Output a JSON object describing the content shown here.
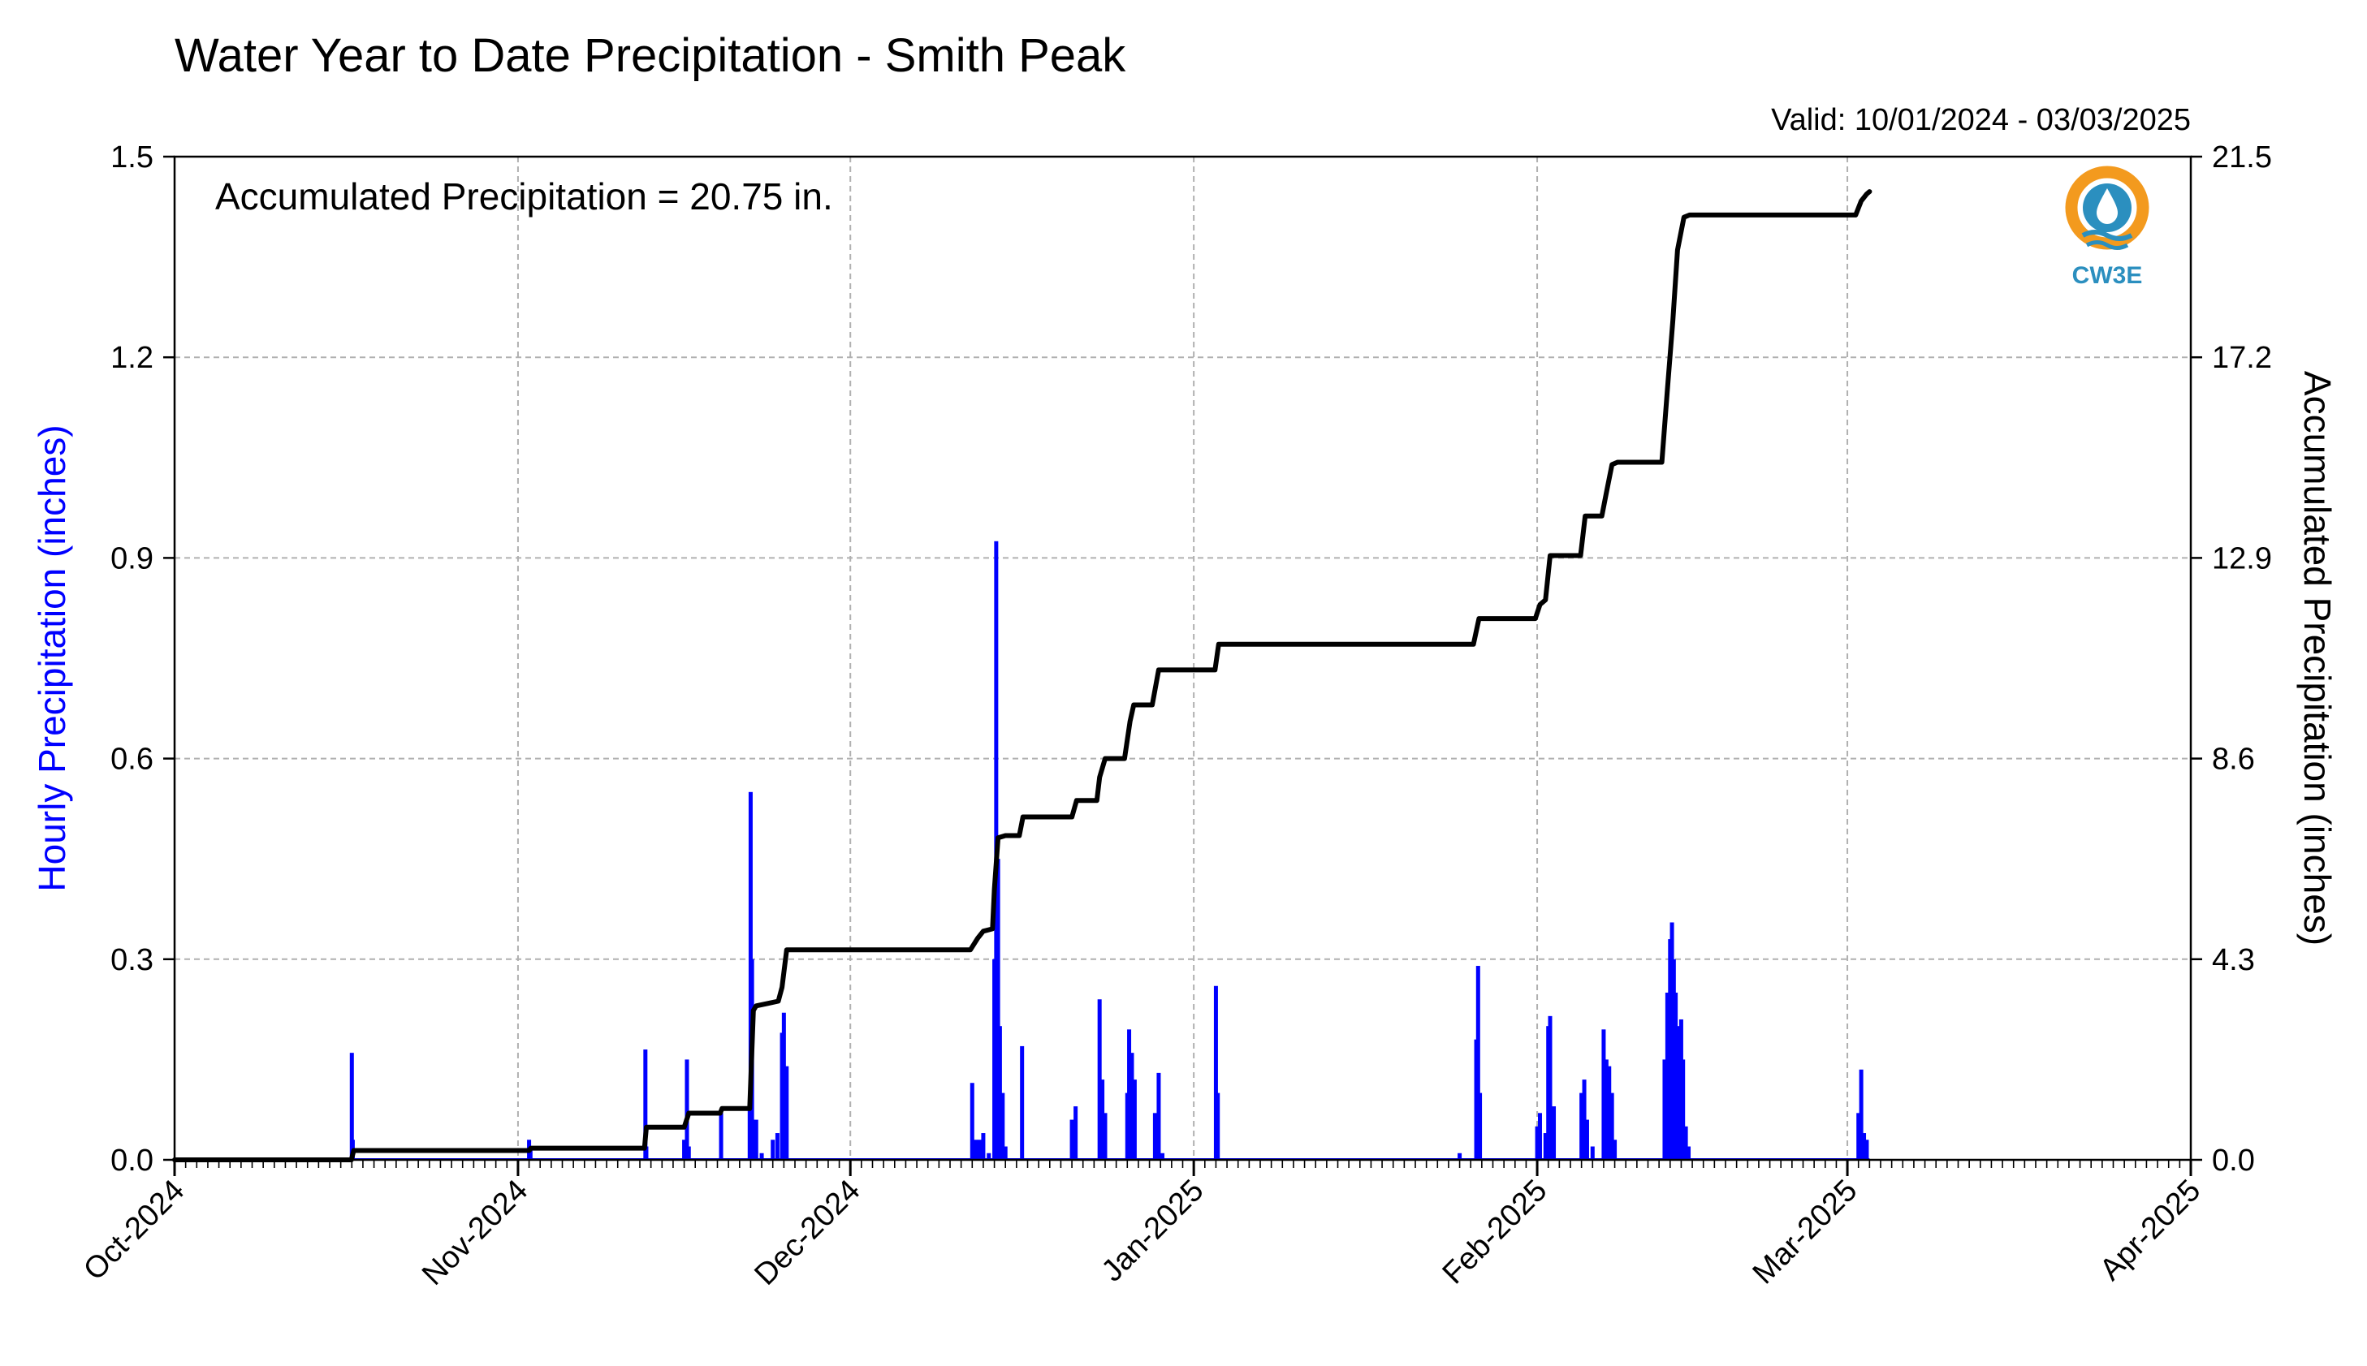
{
  "chart_data": {
    "type": "bar+line",
    "title": "Water Year to Date Precipitation - Smith Peak",
    "subtitle": "Valid: 10/01/2024 - 03/03/2025",
    "annotation": "Accumulated Precipitation = 20.75 in.",
    "logo_text": "CW3E",
    "ylabel_left": "Hourly Precipitation (inches)",
    "ylabel_right": "Accumulated Precipitation (inches)",
    "x_range": [
      "2024-10-01",
      "2025-04-01"
    ],
    "x_tick_labels": [
      "Oct-2024",
      "Nov-2024",
      "Dec-2024",
      "Jan-2025",
      "Feb-2025",
      "Mar-2025",
      "Apr-2025"
    ],
    "x_tick_dates": [
      "2024-10-01",
      "2024-11-01",
      "2024-12-01",
      "2025-01-01",
      "2025-02-01",
      "2025-03-01",
      "2025-04-01"
    ],
    "ylim_left": [
      0,
      1.5
    ],
    "yticks_left": [
      "0.0",
      "0.3",
      "0.6",
      "0.9",
      "1.2",
      "1.5"
    ],
    "ylim_right": [
      0,
      21.5
    ],
    "yticks_right": [
      "0.0",
      "4.3",
      "8.6",
      "12.9",
      "17.2",
      "21.5"
    ],
    "grid": true,
    "colors": {
      "hourly": "#0000ff",
      "accumulated": "#000000",
      "grid": "#b0b0b0"
    },
    "series": [
      {
        "name": "Hourly Precipitation",
        "kind": "bar",
        "points": [
          [
            "2024-10-17 00:00",
            0.16
          ],
          [
            "2024-10-17 02:00",
            0.03
          ],
          [
            "2024-11-02 00:00",
            0.03
          ],
          [
            "2024-11-02 03:00",
            0.02
          ],
          [
            "2024-11-12 12:00",
            0.165
          ],
          [
            "2024-11-12 14:00",
            0.02
          ],
          [
            "2024-11-16 00:00",
            0.03
          ],
          [
            "2024-11-16 06:00",
            0.15
          ],
          [
            "2024-11-16 10:00",
            0.02
          ],
          [
            "2024-11-19 08:00",
            0.07
          ],
          [
            "2024-11-21 22:00",
            0.08
          ],
          [
            "2024-11-22 00:00",
            0.55
          ],
          [
            "2024-11-22 03:00",
            0.3
          ],
          [
            "2024-11-22 06:00",
            0.06
          ],
          [
            "2024-11-22 12:00",
            0.06
          ],
          [
            "2024-11-23 00:00",
            0.01
          ],
          [
            "2024-11-24 00:00",
            0.03
          ],
          [
            "2024-11-24 10:00",
            0.04
          ],
          [
            "2024-11-24 20:00",
            0.19
          ],
          [
            "2024-11-25 00:00",
            0.22
          ],
          [
            "2024-11-25 06:00",
            0.14
          ],
          [
            "2024-12-12 00:00",
            0.115
          ],
          [
            "2024-12-12 08:00",
            0.03
          ],
          [
            "2024-12-12 16:00",
            0.03
          ],
          [
            "2024-12-13 00:00",
            0.04
          ],
          [
            "2024-12-13 12:00",
            0.01
          ],
          [
            "2024-12-14 00:00",
            0.3
          ],
          [
            "2024-12-14 04:00",
            0.925
          ],
          [
            "2024-12-14 08:00",
            0.45
          ],
          [
            "2024-12-14 12:00",
            0.2
          ],
          [
            "2024-12-14 18:00",
            0.1
          ],
          [
            "2024-12-15 00:00",
            0.02
          ],
          [
            "2024-12-16 12:00",
            0.17
          ],
          [
            "2024-12-21 00:00",
            0.06
          ],
          [
            "2024-12-21 08:00",
            0.08
          ],
          [
            "2024-12-23 12:00",
            0.24
          ],
          [
            "2024-12-23 18:00",
            0.12
          ],
          [
            "2024-12-24 00:00",
            0.07
          ],
          [
            "2024-12-26 00:00",
            0.1
          ],
          [
            "2024-12-26 04:00",
            0.195
          ],
          [
            "2024-12-26 10:00",
            0.16
          ],
          [
            "2024-12-26 16:00",
            0.12
          ],
          [
            "2024-12-28 12:00",
            0.07
          ],
          [
            "2024-12-28 20:00",
            0.13
          ],
          [
            "2024-12-29 04:00",
            0.01
          ],
          [
            "2025-01-03 00:00",
            0.26
          ],
          [
            "2025-01-03 04:00",
            0.1
          ],
          [
            "2025-01-25 00:00",
            0.01
          ],
          [
            "2025-01-26 12:00",
            0.18
          ],
          [
            "2025-01-26 16:00",
            0.29
          ],
          [
            "2025-01-26 20:00",
            0.1
          ],
          [
            "2025-02-01 00:00",
            0.05
          ],
          [
            "2025-02-01 06:00",
            0.07
          ],
          [
            "2025-02-01 18:00",
            0.04
          ],
          [
            "2025-02-02 00:00",
            0.2
          ],
          [
            "2025-02-02 04:00",
            0.215
          ],
          [
            "2025-02-02 12:00",
            0.08
          ],
          [
            "2025-02-05 00:00",
            0.1
          ],
          [
            "2025-02-05 06:00",
            0.12
          ],
          [
            "2025-02-05 12:00",
            0.06
          ],
          [
            "2025-02-06 00:00",
            0.02
          ],
          [
            "2025-02-07 00:00",
            0.195
          ],
          [
            "2025-02-07 06:00",
            0.15
          ],
          [
            "2025-02-07 12:00",
            0.14
          ],
          [
            "2025-02-07 18:00",
            0.1
          ],
          [
            "2025-02-08 00:00",
            0.03
          ],
          [
            "2025-02-12 12:00",
            0.15
          ],
          [
            "2025-02-12 18:00",
            0.25
          ],
          [
            "2025-02-13 00:00",
            0.33
          ],
          [
            "2025-02-13 04:00",
            0.355
          ],
          [
            "2025-02-13 08:00",
            0.3
          ],
          [
            "2025-02-13 12:00",
            0.25
          ],
          [
            "2025-02-13 18:00",
            0.2
          ],
          [
            "2025-02-14 00:00",
            0.21
          ],
          [
            "2025-02-14 04:00",
            0.15
          ],
          [
            "2025-02-14 10:00",
            0.05
          ],
          [
            "2025-02-14 16:00",
            0.02
          ],
          [
            "2025-03-02 00:00",
            0.07
          ],
          [
            "2025-03-02 06:00",
            0.135
          ],
          [
            "2025-03-02 12:00",
            0.04
          ],
          [
            "2025-03-02 18:00",
            0.03
          ]
        ]
      },
      {
        "name": "Accumulated Precipitation",
        "kind": "line",
        "points": [
          [
            "2024-10-01 00:00",
            0.0
          ],
          [
            "2024-10-16 23:00",
            0.0
          ],
          [
            "2024-10-17 04:00",
            0.2
          ],
          [
            "2024-11-02 00:00",
            0.2
          ],
          [
            "2024-11-02 04:00",
            0.25
          ],
          [
            "2024-11-12 10:00",
            0.25
          ],
          [
            "2024-11-12 14:00",
            0.7
          ],
          [
            "2024-11-16 00:00",
            0.7
          ],
          [
            "2024-11-16 10:00",
            1.0
          ],
          [
            "2024-11-19 06:00",
            1.0
          ],
          [
            "2024-11-19 10:00",
            1.1
          ],
          [
            "2024-11-21 22:00",
            1.1
          ],
          [
            "2024-11-22 06:00",
            3.2
          ],
          [
            "2024-11-22 12:00",
            3.3
          ],
          [
            "2024-11-23 12:00",
            3.35
          ],
          [
            "2024-11-24 12:00",
            3.4
          ],
          [
            "2024-11-24 20:00",
            3.7
          ],
          [
            "2024-11-25 06:00",
            4.5
          ],
          [
            "2024-12-11 20:00",
            4.5
          ],
          [
            "2024-12-12 12:00",
            4.75
          ],
          [
            "2024-12-13 00:00",
            4.9
          ],
          [
            "2024-12-13 20:00",
            4.95
          ],
          [
            "2024-12-14 00:00",
            5.8
          ],
          [
            "2024-12-14 08:00",
            6.9
          ],
          [
            "2024-12-15 00:00",
            6.95
          ],
          [
            "2024-12-16 06:00",
            6.95
          ],
          [
            "2024-12-16 14:00",
            7.35
          ],
          [
            "2024-12-21 00:00",
            7.35
          ],
          [
            "2024-12-21 10:00",
            7.7
          ],
          [
            "2024-12-23 06:00",
            7.7
          ],
          [
            "2024-12-23 12:00",
            8.2
          ],
          [
            "2024-12-24 00:00",
            8.6
          ],
          [
            "2024-12-25 18:00",
            8.6
          ],
          [
            "2024-12-26 06:00",
            9.4
          ],
          [
            "2024-12-26 14:00",
            9.75
          ],
          [
            "2024-12-28 06:00",
            9.75
          ],
          [
            "2024-12-28 20:00",
            10.5
          ],
          [
            "2025-01-02 22:00",
            10.5
          ],
          [
            "2025-01-03 06:00",
            11.05
          ],
          [
            "2025-01-26 06:00",
            11.05
          ],
          [
            "2025-01-26 18:00",
            11.6
          ],
          [
            "2025-01-31 20:00",
            11.6
          ],
          [
            "2025-02-01 06:00",
            11.9
          ],
          [
            "2025-02-01 18:00",
            12.0
          ],
          [
            "2025-02-02 04:00",
            12.95
          ],
          [
            "2025-02-04 22:00",
            12.95
          ],
          [
            "2025-02-05 08:00",
            13.8
          ],
          [
            "2025-02-06 20:00",
            13.8
          ],
          [
            "2025-02-07 06:00",
            14.3
          ],
          [
            "2025-02-07 18:00",
            14.9
          ],
          [
            "2025-02-08 06:00",
            14.95
          ],
          [
            "2025-02-12 06:00",
            14.95
          ],
          [
            "2025-02-12 18:00",
            16.5
          ],
          [
            "2025-02-13 06:00",
            18.0
          ],
          [
            "2025-02-13 16:00",
            19.5
          ],
          [
            "2025-02-14 06:00",
            20.2
          ],
          [
            "2025-02-14 18:00",
            20.25
          ],
          [
            "2025-03-01 18:00",
            20.25
          ],
          [
            "2025-03-02 06:00",
            20.55
          ],
          [
            "2025-03-02 18:00",
            20.7
          ],
          [
            "2025-03-03 00:00",
            20.75
          ]
        ]
      }
    ]
  }
}
